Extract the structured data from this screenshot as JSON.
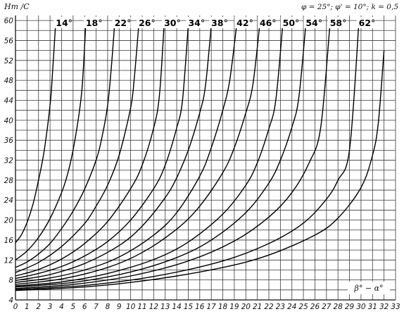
{
  "chart_data": {
    "type": "line",
    "ylabel": "Hт /C",
    "xlabel": "β° − α°",
    "parameters_note": "φ = 25°; φ' = 10°; k = 0,5",
    "xlim": [
      0,
      33
    ],
    "ylim": [
      4,
      61
    ],
    "x_ticks": [
      0,
      1,
      2,
      3,
      4,
      5,
      6,
      7,
      8,
      9,
      10,
      11,
      12,
      13,
      14,
      15,
      16,
      17,
      18,
      19,
      20,
      21,
      22,
      23,
      24,
      25,
      26,
      27,
      28,
      29,
      30,
      31,
      32,
      33
    ],
    "y_ticks": [
      4,
      8,
      12,
      16,
      20,
      24,
      28,
      32,
      36,
      40,
      44,
      48,
      52,
      56,
      60
    ],
    "grid": true,
    "series": [
      {
        "name": "14°",
        "x": [
          0,
          0.5,
          1,
          1.5,
          2,
          2.5,
          3,
          3.2,
          3.5
        ],
        "y": [
          15.5,
          17,
          19.5,
          23,
          28,
          34,
          43,
          49,
          60
        ]
      },
      {
        "name": "18°",
        "x": [
          0,
          1,
          2,
          3,
          4,
          4.5,
          5,
          5.5,
          5.8,
          6.1
        ],
        "y": [
          12,
          13.8,
          16.5,
          20.3,
          25.5,
          29,
          34,
          41,
          47,
          59
        ]
      },
      {
        "name": "22°",
        "x": [
          0,
          1,
          2,
          3,
          4,
          5,
          6,
          7,
          7.5,
          8,
          8.3,
          8.6
        ],
        "y": [
          10.5,
          11.6,
          13.2,
          15.3,
          18.3,
          21.8,
          26.2,
          32,
          36.5,
          43,
          50,
          59
        ]
      },
      {
        "name": "26°",
        "x": [
          0,
          2,
          4,
          6,
          7,
          8,
          9,
          10,
          10.3,
          10.7
        ],
        "y": [
          9.5,
          11.5,
          14.7,
          19.3,
          22.8,
          27,
          33,
          42.5,
          48,
          59
        ]
      },
      {
        "name": "30°",
        "x": [
          0,
          2,
          4,
          6,
          8,
          10,
          11,
          12,
          12.5,
          12.9
        ],
        "y": [
          8.8,
          10.1,
          12.2,
          15.3,
          19.7,
          26.3,
          31,
          38.5,
          45,
          59
        ]
      },
      {
        "name": "34°",
        "x": [
          0,
          2,
          4,
          6,
          8,
          10,
          12,
          13,
          14,
          14.5,
          15
        ],
        "y": [
          8.3,
          9.3,
          10.7,
          12.8,
          15.7,
          20,
          26.3,
          31,
          38.5,
          44,
          59
        ]
      },
      {
        "name": "38°",
        "x": [
          0,
          3,
          6,
          9,
          11,
          13,
          14,
          15,
          16,
          16.5,
          17
        ],
        "y": [
          7.9,
          9.1,
          11.3,
          14.9,
          18.8,
          24.5,
          28.5,
          34,
          41.5,
          47,
          59
        ]
      },
      {
        "name": "42°",
        "x": [
          0,
          3,
          6,
          9,
          12,
          14,
          16,
          17,
          18,
          18.6,
          19.2
        ],
        "y": [
          7.5,
          8.4,
          10,
          12.6,
          17,
          21.5,
          28.8,
          34.5,
          42,
          48,
          59
        ]
      },
      {
        "name": "46°",
        "x": [
          0,
          4,
          8,
          11,
          14,
          16,
          18,
          19,
          20,
          20.6,
          21.2
        ],
        "y": [
          7.1,
          8.2,
          10.5,
          13.5,
          18.2,
          22.8,
          29.5,
          34.5,
          41.5,
          47,
          59
        ]
      },
      {
        "name": "50°",
        "x": [
          0,
          4,
          8,
          12,
          15,
          18,
          20,
          21,
          22,
          22.6,
          23.2
        ],
        "y": [
          6.8,
          7.6,
          9.3,
          12.1,
          15.6,
          21.2,
          27,
          31.5,
          38.3,
          44,
          59
        ]
      },
      {
        "name": "54°",
        "x": [
          0,
          5,
          10,
          14,
          17,
          20,
          22,
          23,
          24,
          24.6,
          25.2
        ],
        "y": [
          6.6,
          7.5,
          9.6,
          12.5,
          16,
          21.5,
          27.4,
          32,
          38.6,
          44.5,
          59
        ]
      },
      {
        "name": "58°",
        "x": [
          0,
          5,
          10,
          15,
          19,
          22,
          24,
          25.5,
          26.5,
          27.3
        ],
        "y": [
          6.3,
          7.1,
          8.8,
          11.8,
          15.8,
          20.6,
          25.5,
          31.5,
          38.5,
          59
        ]
      },
      {
        "name": "62°",
        "x": [
          0,
          6,
          12,
          18,
          22,
          25,
          27,
          28,
          29,
          29.8
        ],
        "y": [
          6.1,
          6.9,
          8.7,
          11.8,
          15.3,
          19.4,
          24.2,
          28,
          34,
          59
        ]
      },
      {
        "name": "",
        "x": [
          0,
          6,
          12,
          18,
          22,
          26,
          28,
          30,
          31,
          31.5,
          32
        ],
        "y": [
          5.9,
          6.6,
          8.1,
          10.5,
          13,
          17,
          20.4,
          26.5,
          33,
          39.5,
          54
        ]
      }
    ]
  }
}
